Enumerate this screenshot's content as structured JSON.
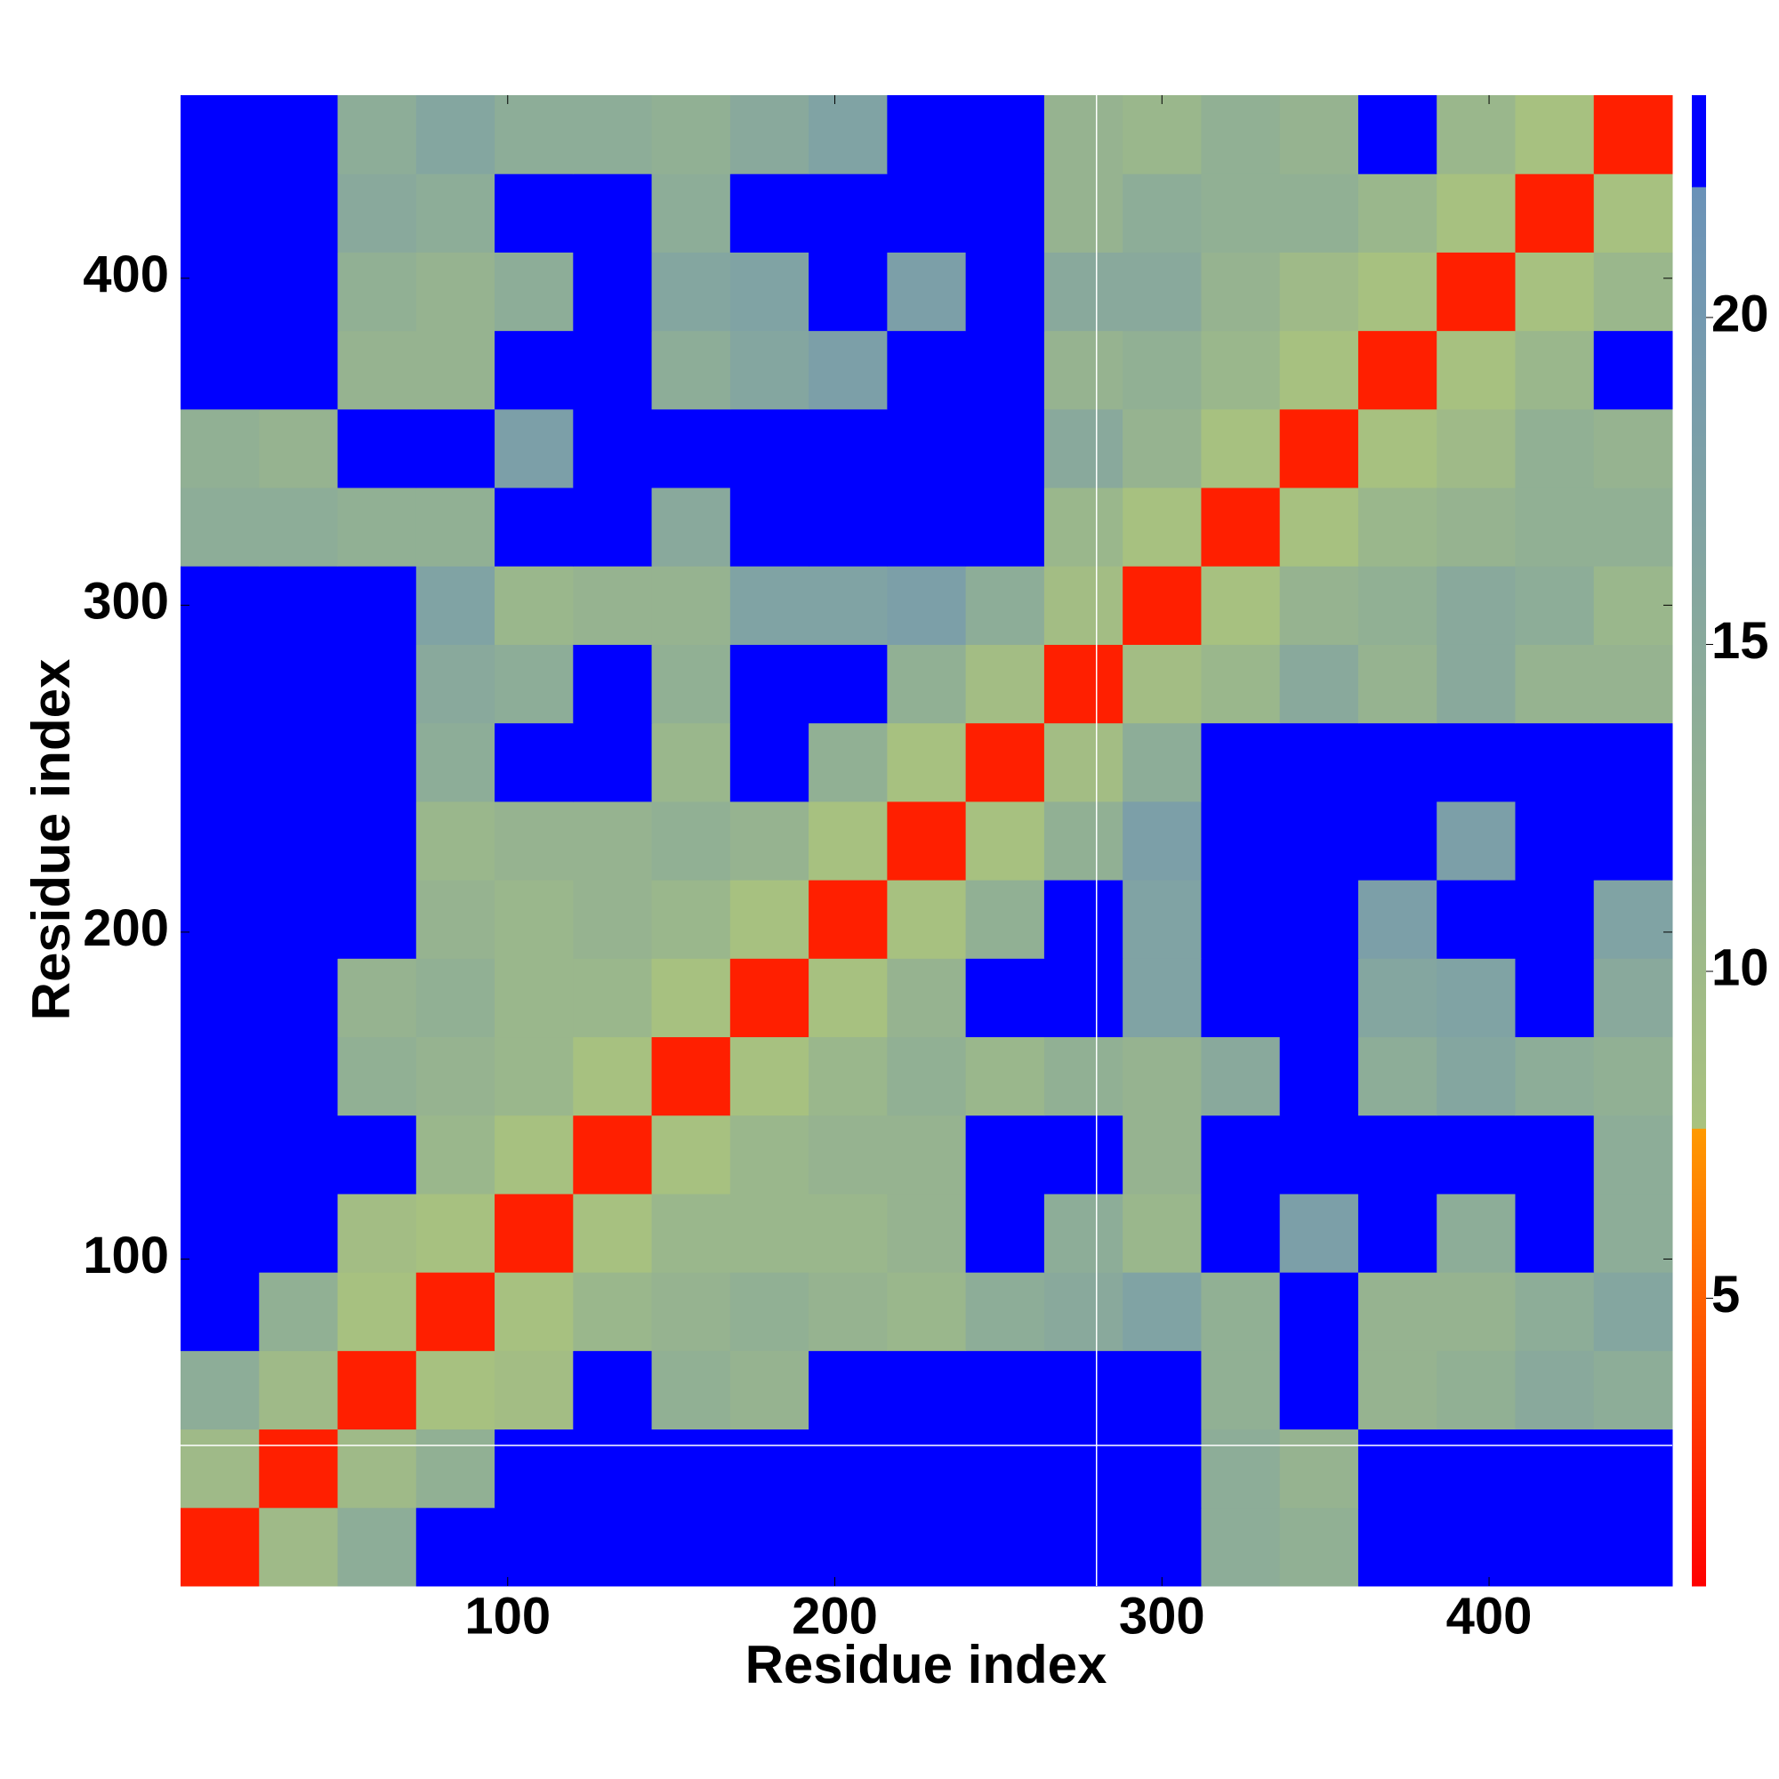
{
  "chart_data": {
    "type": "heatmap",
    "x_label": "Residue index",
    "y_label": "Residue index",
    "x": [
      12,
      36,
      60,
      84,
      108,
      132,
      156,
      180,
      204,
      228,
      252,
      276,
      300,
      324,
      348,
      372,
      396,
      420,
      444
    ],
    "y": [
      12,
      36,
      60,
      84,
      108,
      132,
      156,
      180,
      204,
      228,
      252,
      276,
      300,
      324,
      348,
      372,
      396,
      420,
      444
    ],
    "z": [
      [
        2,
        10,
        14,
        23,
        23,
        23,
        23,
        23,
        23,
        23,
        23,
        23,
        23,
        14,
        13,
        23,
        23,
        23,
        23
      ],
      [
        10,
        2,
        10,
        13,
        23,
        23,
        23,
        23,
        23,
        23,
        23,
        23,
        23,
        14,
        12,
        23,
        23,
        23,
        23
      ],
      [
        14,
        10,
        2,
        8,
        9,
        23,
        13,
        12,
        23,
        23,
        23,
        23,
        23,
        13,
        23,
        12,
        13,
        15,
        14
      ],
      [
        23,
        13,
        8,
        2,
        8,
        11,
        12,
        13,
        12,
        11,
        14,
        15,
        17,
        13,
        23,
        12,
        12,
        14,
        16
      ],
      [
        23,
        23,
        9,
        8,
        2,
        8,
        11,
        11,
        11,
        12,
        23,
        14,
        11,
        23,
        18,
        23,
        14,
        23,
        14
      ],
      [
        23,
        23,
        23,
        11,
        8,
        2,
        8,
        11,
        12,
        12,
        23,
        23,
        12,
        23,
        23,
        23,
        23,
        23,
        14
      ],
      [
        23,
        23,
        13,
        12,
        11,
        8,
        2,
        8,
        11,
        13,
        11,
        13,
        12,
        15,
        23,
        14,
        16,
        14,
        13
      ],
      [
        23,
        23,
        12,
        13,
        11,
        11,
        8,
        2,
        8,
        12,
        23,
        23,
        17,
        23,
        23,
        16,
        17,
        23,
        15
      ],
      [
        23,
        23,
        23,
        12,
        11,
        12,
        11,
        8,
        2,
        8,
        13,
        23,
        17,
        23,
        23,
        18,
        23,
        23,
        17
      ],
      [
        23,
        23,
        23,
        11,
        12,
        12,
        13,
        12,
        8,
        2,
        8,
        13,
        18,
        23,
        23,
        23,
        18,
        23,
        23
      ],
      [
        23,
        23,
        23,
        14,
        23,
        23,
        11,
        23,
        13,
        8,
        2,
        9,
        14,
        23,
        23,
        23,
        23,
        23,
        23
      ],
      [
        23,
        23,
        23,
        15,
        14,
        23,
        13,
        23,
        23,
        13,
        9,
        2,
        9,
        11,
        15,
        12,
        15,
        12,
        12
      ],
      [
        23,
        23,
        23,
        17,
        11,
        12,
        12,
        17,
        17,
        18,
        14,
        9,
        2,
        8,
        12,
        13,
        15,
        14,
        11
      ],
      [
        14,
        14,
        13,
        13,
        23,
        23,
        15,
        23,
        23,
        23,
        23,
        11,
        8,
        2,
        8,
        11,
        12,
        13,
        13
      ],
      [
        13,
        12,
        23,
        23,
        18,
        23,
        23,
        23,
        23,
        23,
        23,
        15,
        12,
        8,
        2,
        8,
        10,
        13,
        12
      ],
      [
        23,
        23,
        12,
        12,
        23,
        23,
        14,
        16,
        18,
        23,
        23,
        12,
        13,
        11,
        8,
        2,
        8,
        11,
        23
      ],
      [
        23,
        23,
        13,
        12,
        14,
        23,
        16,
        17,
        23,
        18,
        23,
        15,
        15,
        12,
        10,
        8,
        2,
        8,
        11
      ],
      [
        23,
        23,
        15,
        14,
        23,
        23,
        14,
        23,
        23,
        23,
        23,
        12,
        14,
        13,
        13,
        11,
        8,
        2,
        8
      ],
      [
        23,
        23,
        14,
        16,
        14,
        14,
        13,
        15,
        17,
        23,
        23,
        12,
        11,
        13,
        12,
        23,
        11,
        8,
        2
      ]
    ],
    "xlim": [
      0,
      456
    ],
    "ylim": [
      0,
      456
    ],
    "xticks": [
      100,
      200,
      300,
      400
    ],
    "yticks": [
      100,
      200,
      300,
      400
    ],
    "zlim": [
      0.6,
      23.4
    ],
    "zticks": [
      5,
      10,
      15,
      20
    ],
    "colorscale": [
      [
        0.6,
        "#ff0000"
      ],
      [
        7.6,
        "#ff9a00"
      ],
      [
        7.6,
        "#a9c27e"
      ],
      [
        22,
        "#6a92b8"
      ],
      [
        22,
        "#0000ff"
      ],
      [
        23.4,
        "#0000ff"
      ]
    ],
    "vlines": [
      280
    ],
    "hlines": [
      43
    ],
    "line_color": "#ffffff"
  }
}
